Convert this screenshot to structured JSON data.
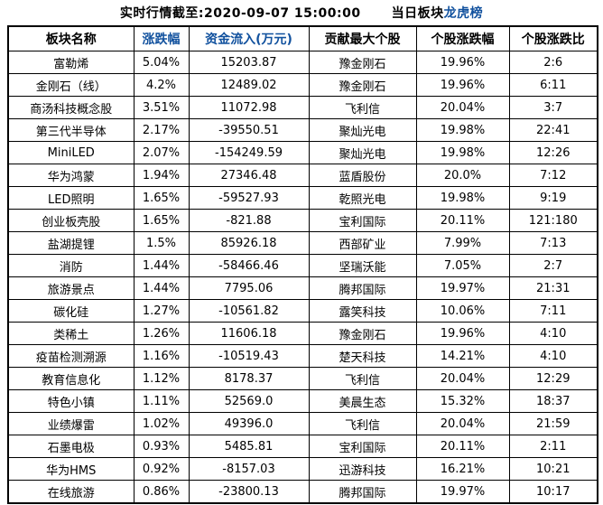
{
  "title": {
    "timestamp_label": "实时行情截至:2020-09-07 15:00:00",
    "board_prefix": "当日板块",
    "link_label": "龙虎榜"
  },
  "colors": {
    "link_blue": "#11519E",
    "text_black": "#000000",
    "border_black": "#000000",
    "background": "#FFFFFF"
  },
  "table": {
    "headers": [
      {
        "label": "板块名称",
        "color": "black"
      },
      {
        "label": "涨跌幅",
        "color": "blue"
      },
      {
        "label": "资金流入(万元)",
        "color": "blue"
      },
      {
        "label": "贡献最大个股",
        "color": "black"
      },
      {
        "label": "个股涨跌幅",
        "color": "black"
      },
      {
        "label": "个股涨跌比",
        "color": "black"
      }
    ],
    "rows": [
      {
        "sector": "富勒烯",
        "change": "5.04%",
        "inflow": "15203.87",
        "top_stock": "豫金刚石",
        "stock_change": "19.96%",
        "ratio": "2:6"
      },
      {
        "sector": "金刚石（线）",
        "change": "4.2%",
        "inflow": "12489.02",
        "top_stock": "豫金刚石",
        "stock_change": "19.96%",
        "ratio": "6:11"
      },
      {
        "sector": "商汤科技概念股",
        "change": "3.51%",
        "inflow": "11072.98",
        "top_stock": "飞利信",
        "stock_change": "20.04%",
        "ratio": "3:7"
      },
      {
        "sector": "第三代半导体",
        "change": "2.17%",
        "inflow": "-39550.51",
        "top_stock": "聚灿光电",
        "stock_change": "19.98%",
        "ratio": "22:41"
      },
      {
        "sector": "MiniLED",
        "change": "2.07%",
        "inflow": "-154249.59",
        "top_stock": "聚灿光电",
        "stock_change": "19.98%",
        "ratio": "12:26"
      },
      {
        "sector": "华为鸿蒙",
        "change": "1.94%",
        "inflow": "27346.48",
        "top_stock": "蓝盾股份",
        "stock_change": "20.0%",
        "ratio": "7:12"
      },
      {
        "sector": "LED照明",
        "change": "1.65%",
        "inflow": "-59527.93",
        "top_stock": "乾照光电",
        "stock_change": "19.98%",
        "ratio": "9:19"
      },
      {
        "sector": "创业板壳股",
        "change": "1.65%",
        "inflow": "-821.88",
        "top_stock": "宝利国际",
        "stock_change": "20.11%",
        "ratio": "121:180"
      },
      {
        "sector": "盐湖提锂",
        "change": "1.5%",
        "inflow": "85926.18",
        "top_stock": "西部矿业",
        "stock_change": "7.99%",
        "ratio": "7:13"
      },
      {
        "sector": "消防",
        "change": "1.44%",
        "inflow": "-58466.46",
        "top_stock": "坚瑞沃能",
        "stock_change": "7.05%",
        "ratio": "2:7"
      },
      {
        "sector": "旅游景点",
        "change": "1.44%",
        "inflow": "7795.06",
        "top_stock": "腾邦国际",
        "stock_change": "19.97%",
        "ratio": "21:31"
      },
      {
        "sector": "碳化硅",
        "change": "1.27%",
        "inflow": "-10561.82",
        "top_stock": "露笑科技",
        "stock_change": "10.06%",
        "ratio": "7:11"
      },
      {
        "sector": "类稀土",
        "change": "1.26%",
        "inflow": "11606.18",
        "top_stock": "豫金刚石",
        "stock_change": "19.96%",
        "ratio": "4:10"
      },
      {
        "sector": "疫苗检测溯源",
        "change": "1.16%",
        "inflow": "-10519.43",
        "top_stock": "楚天科技",
        "stock_change": "14.21%",
        "ratio": "4:10"
      },
      {
        "sector": "教育信息化",
        "change": "1.12%",
        "inflow": "8178.37",
        "top_stock": "飞利信",
        "stock_change": "20.04%",
        "ratio": "12:29"
      },
      {
        "sector": "特色小镇",
        "change": "1.11%",
        "inflow": "52569.0",
        "top_stock": "美晨生态",
        "stock_change": "15.32%",
        "ratio": "18:37"
      },
      {
        "sector": "业绩爆雷",
        "change": "1.02%",
        "inflow": "49396.0",
        "top_stock": "飞利信",
        "stock_change": "20.04%",
        "ratio": "21:59"
      },
      {
        "sector": "石墨电极",
        "change": "0.93%",
        "inflow": "5485.81",
        "top_stock": "宝利国际",
        "stock_change": "20.11%",
        "ratio": "2:11"
      },
      {
        "sector": "华为HMS",
        "change": "0.92%",
        "inflow": "-8157.03",
        "top_stock": "迅游科技",
        "stock_change": "16.21%",
        "ratio": "10:21"
      },
      {
        "sector": "在线旅游",
        "change": "0.86%",
        "inflow": "-23800.13",
        "top_stock": "腾邦国际",
        "stock_change": "19.97%",
        "ratio": "10:17"
      }
    ]
  }
}
